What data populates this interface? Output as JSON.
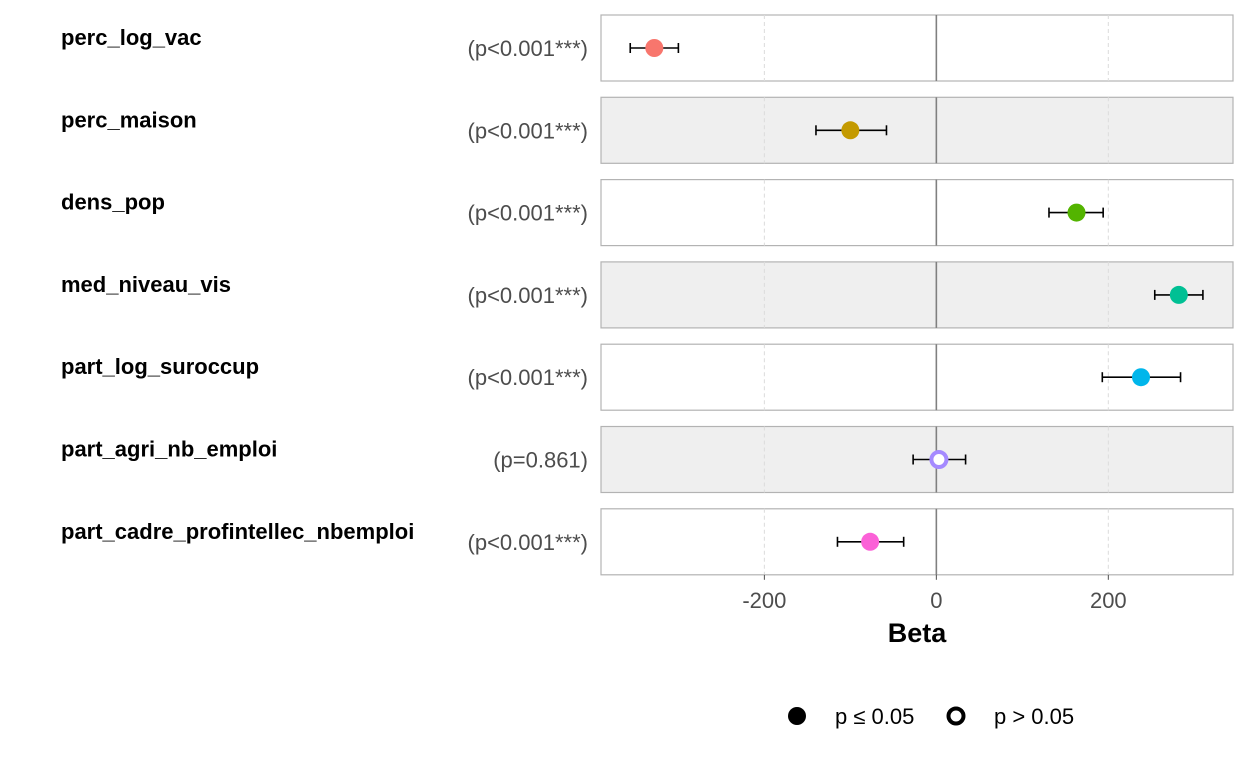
{
  "chart_data": {
    "type": "scatter",
    "subtype": "forest-plot",
    "xlabel": "Beta",
    "xlim": [
      -390,
      345
    ],
    "xticks": [
      -200,
      0,
      200
    ],
    "xtick_labels": [
      "-200",
      "0",
      "200"
    ],
    "grid": "vertical dashed gridlines at x ticks; solid reference line at 0",
    "rows": [
      {
        "term": "perc_log_vac",
        "pvalue_label": "(p<0.001***)",
        "estimate": -328,
        "ci_low": -356,
        "ci_high": -300,
        "color": "#F8766D",
        "significant": true,
        "shaded": false
      },
      {
        "term": "perc_maison",
        "pvalue_label": "(p<0.001***)",
        "estimate": -100,
        "ci_low": -140,
        "ci_high": -58,
        "color": "#C49A00",
        "significant": true,
        "shaded": true
      },
      {
        "term": "dens_pop",
        "pvalue_label": "(p<0.001***)",
        "estimate": 163,
        "ci_low": 131,
        "ci_high": 194,
        "color": "#53B400",
        "significant": true,
        "shaded": false
      },
      {
        "term": "med_niveau_vis",
        "pvalue_label": "(p<0.001***)",
        "estimate": 282,
        "ci_low": 254,
        "ci_high": 310,
        "color": "#00C094",
        "significant": true,
        "shaded": true
      },
      {
        "term": "part_log_suroccup",
        "pvalue_label": "(p<0.001***)",
        "estimate": 238,
        "ci_low": 193,
        "ci_high": 284,
        "color": "#00B6EB",
        "significant": true,
        "shaded": false
      },
      {
        "term": "part_agri_nb_emploi",
        "pvalue_label": "(p=0.861)",
        "estimate": 3,
        "ci_low": -27,
        "ci_high": 34,
        "color": "#A58AFF",
        "significant": false,
        "shaded": true
      },
      {
        "term": "part_cadre_profintellec_nbemploi",
        "pvalue_label": "(p<0.001***)",
        "estimate": -77,
        "ci_low": -115,
        "ci_high": -38,
        "color": "#FB61D7",
        "significant": true,
        "shaded": false
      }
    ],
    "legend": {
      "position": "bottom",
      "items": [
        {
          "label": "p ≤ 0.05",
          "shape": "filled-circle"
        },
        {
          "label": "p > 0.05",
          "shape": "hollow-circle"
        }
      ]
    },
    "colors": {
      "panel_border": "#b3b3b3",
      "panel_shade": "#efefef",
      "zero_line": "#808080",
      "grid": "#dcdcdc",
      "errorbar": "#000000"
    }
  }
}
